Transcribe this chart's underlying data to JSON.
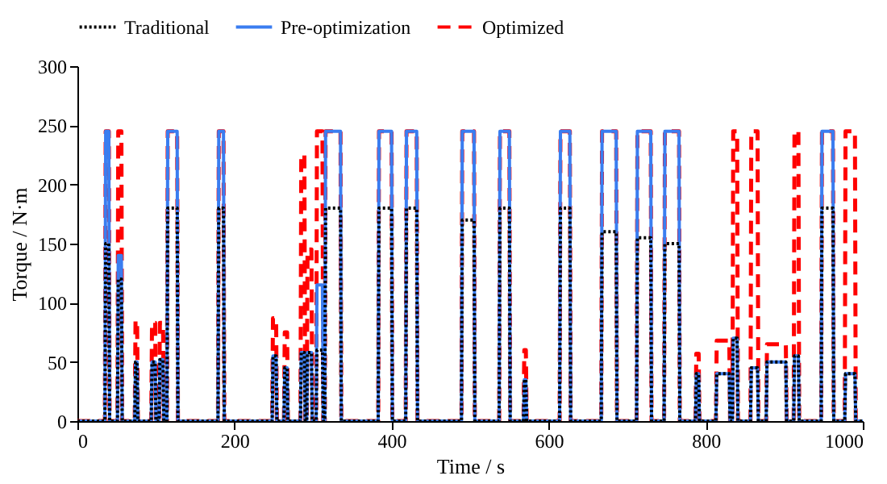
{
  "chart_data": {
    "type": "line",
    "xlabel": "Time / s",
    "ylabel": "Torque / N·m",
    "x": [
      0,
      35,
      36,
      40,
      41,
      51,
      52,
      56,
      57,
      73,
      74,
      76,
      77,
      94,
      95,
      99,
      100,
      104,
      105,
      109,
      110,
      114,
      115,
      127,
      128,
      179,
      180,
      186,
      187,
      248,
      249,
      253,
      254,
      263,
      264,
      267,
      268,
      284,
      285,
      289,
      290,
      292,
      293,
      298,
      299,
      304,
      305,
      312,
      313,
      315,
      316,
      335,
      336,
      383,
      384,
      400,
      401,
      418,
      419,
      432,
      433,
      489,
      490,
      505,
      506,
      537,
      538,
      550,
      551,
      568,
      569,
      571,
      572,
      614,
      615,
      627,
      628,
      667,
      668,
      686,
      687,
      712,
      713,
      730,
      731,
      747,
      748,
      766,
      767,
      787,
      788,
      791,
      792,
      813,
      814,
      830,
      831,
      834,
      835,
      840,
      841,
      857,
      858,
      866,
      867,
      877,
      878,
      902,
      903,
      912,
      913,
      918,
      919,
      947,
      948,
      962,
      963,
      977,
      978,
      990,
      991,
      1000
    ],
    "series": [
      {
        "name": "Traditional",
        "color": "#000000",
        "line_style": "dotted",
        "values": [
          0,
          0,
          150,
          150,
          0,
          0,
          120,
          120,
          0,
          0,
          50,
          50,
          0,
          0,
          50,
          50,
          0,
          0,
          52,
          52,
          0,
          0,
          180,
          180,
          0,
          0,
          180,
          180,
          0,
          0,
          55,
          55,
          0,
          0,
          45,
          45,
          0,
          0,
          58,
          58,
          0,
          0,
          58,
          58,
          0,
          0,
          60,
          60,
          0,
          0,
          180,
          180,
          0,
          0,
          180,
          180,
          0,
          0,
          180,
          180,
          0,
          0,
          170,
          170,
          0,
          0,
          180,
          180,
          0,
          0,
          35,
          35,
          0,
          0,
          180,
          180,
          0,
          0,
          160,
          160,
          0,
          0,
          155,
          155,
          0,
          0,
          150,
          150,
          0,
          0,
          40,
          40,
          0,
          0,
          40,
          40,
          0,
          0,
          70,
          70,
          0,
          0,
          45,
          45,
          0,
          0,
          50,
          50,
          0,
          0,
          55,
          55,
          0,
          0,
          180,
          180,
          0,
          0,
          40,
          40,
          0,
          0
        ]
      },
      {
        "name": "Pre-optimization",
        "color": "#3a7df0",
        "line_style": "solid",
        "values": [
          0,
          0,
          245,
          245,
          0,
          0,
          140,
          140,
          0,
          0,
          50,
          50,
          0,
          0,
          50,
          50,
          0,
          0,
          52,
          52,
          0,
          0,
          245,
          245,
          0,
          0,
          245,
          245,
          0,
          0,
          55,
          55,
          0,
          0,
          45,
          45,
          0,
          0,
          58,
          58,
          0,
          0,
          58,
          58,
          0,
          0,
          115,
          115,
          0,
          0,
          245,
          245,
          0,
          0,
          245,
          245,
          0,
          0,
          245,
          245,
          0,
          0,
          245,
          245,
          0,
          0,
          245,
          245,
          0,
          0,
          35,
          35,
          0,
          0,
          245,
          245,
          0,
          0,
          245,
          245,
          0,
          0,
          245,
          245,
          0,
          0,
          245,
          245,
          0,
          0,
          40,
          40,
          0,
          0,
          40,
          40,
          0,
          0,
          70,
          70,
          0,
          0,
          45,
          45,
          0,
          0,
          50,
          50,
          0,
          0,
          55,
          55,
          0,
          0,
          245,
          245,
          0,
          0,
          40,
          40,
          0,
          0
        ]
      },
      {
        "name": "Optimized",
        "color": "#ff0000",
        "line_style": "dashed",
        "values": [
          0,
          0,
          245,
          245,
          0,
          0,
          245,
          245,
          0,
          0,
          85,
          85,
          0,
          0,
          83,
          83,
          0,
          0,
          83,
          83,
          0,
          0,
          245,
          245,
          0,
          0,
          245,
          245,
          0,
          0,
          87,
          87,
          0,
          0,
          75,
          75,
          0,
          0,
          225,
          225,
          0,
          0,
          145,
          145,
          0,
          0,
          245,
          245,
          0,
          0,
          245,
          245,
          0,
          0,
          245,
          245,
          0,
          0,
          245,
          245,
          0,
          0,
          245,
          245,
          0,
          0,
          245,
          245,
          0,
          0,
          60,
          60,
          0,
          0,
          245,
          245,
          0,
          0,
          245,
          245,
          0,
          0,
          245,
          245,
          0,
          0,
          245,
          245,
          0,
          0,
          57,
          57,
          0,
          0,
          68,
          68,
          0,
          0,
          245,
          245,
          0,
          0,
          245,
          245,
          0,
          0,
          65,
          65,
          0,
          0,
          245,
          245,
          0,
          0,
          245,
          245,
          0,
          0,
          245,
          245,
          0,
          0
        ]
      }
    ],
    "xlim": [
      0,
      1000
    ],
    "xticks": [
      0,
      200,
      400,
      600,
      800,
      1000
    ],
    "ylim": [
      0,
      300
    ],
    "yticks": [
      0,
      50,
      100,
      150,
      200,
      250,
      300
    ],
    "grid": false,
    "legend": "top",
    "marker": "none"
  }
}
